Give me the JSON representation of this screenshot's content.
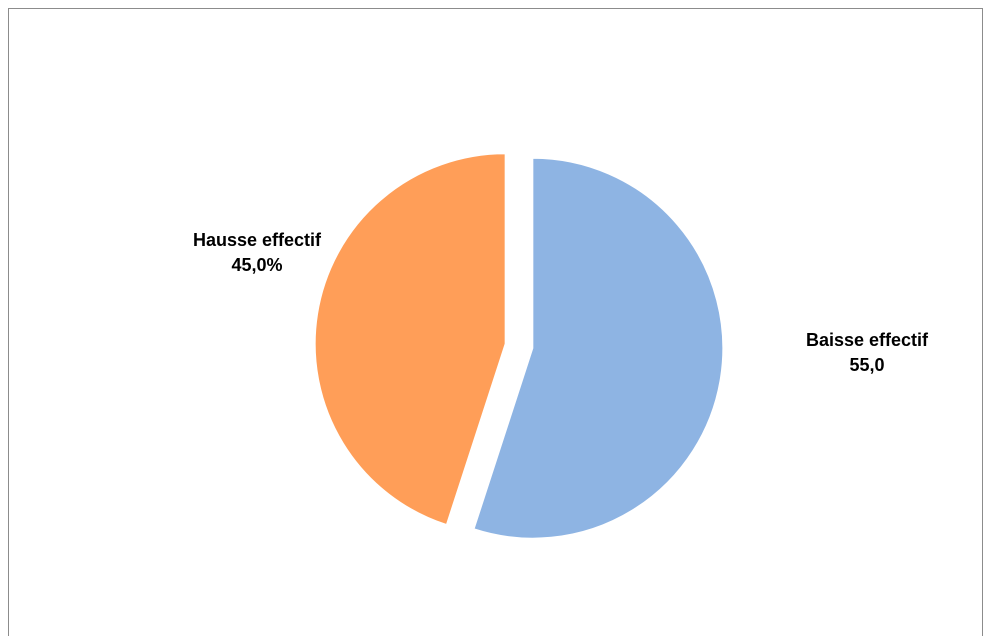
{
  "chart_data": {
    "type": "pie",
    "slices": [
      {
        "label": "Baisse effectif",
        "value": 55.0,
        "value_label": "55,0",
        "color": "#8EB4E3"
      },
      {
        "label": "Hausse effectif",
        "value": 45.0,
        "value_label": "45,0%",
        "color": "#FF9E58"
      }
    ],
    "legend": "none",
    "exploded": true
  }
}
